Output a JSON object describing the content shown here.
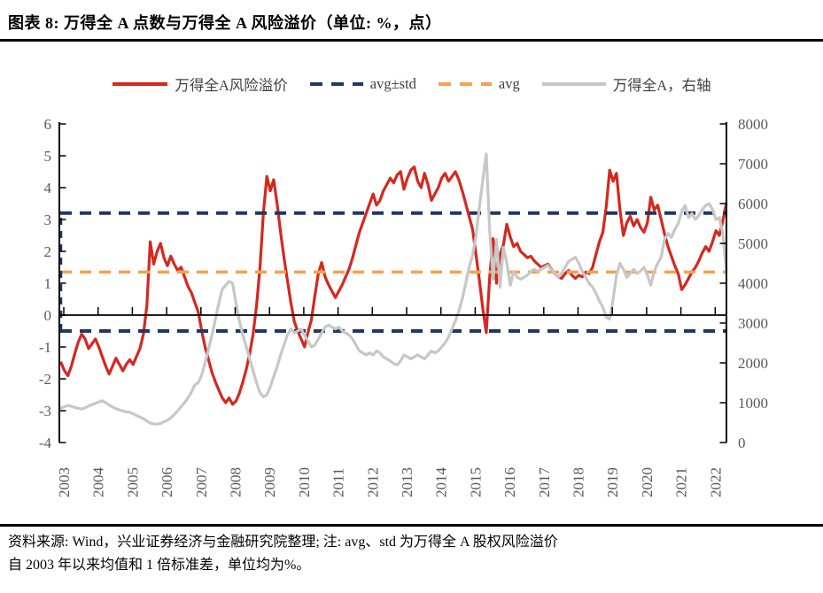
{
  "title": "图表 8: 万得全 A 点数与万得全 A 风险溢价（单位: %，点）",
  "legend": {
    "items": [
      {
        "label": "万得全A风险溢价",
        "marker": "solid",
        "color": "#d5281e",
        "length": 64
      },
      {
        "label": "avg±std",
        "marker": "dashed",
        "color": "#1f3864",
        "length": 62
      },
      {
        "label": "avg",
        "marker": "dashed",
        "color": "#f7a14e",
        "length": 62
      },
      {
        "label": "万得全A，右轴",
        "marker": "solid",
        "color": "#c7c7c7",
        "length": 74
      }
    ]
  },
  "footer": {
    "line1": "资料来源: Wind，兴业证券经济与金融研究院整理; 注: avg、std 为万得全 A 股权风险溢价",
    "line2": "自 2003 年以来均值和 1 倍标准差，单位均为%。"
  },
  "colors": {
    "risk_premium": "#d5281e",
    "avg_std_band": "#1f3864",
    "avg": "#f7a14e",
    "index": "#c7c7c7",
    "axis_line": "#000000",
    "axis_text": "#595959"
  },
  "chart_data": {
    "type": "line",
    "title": "万得全 A 点数与万得全 A 风险溢价",
    "x_start": 2003.0,
    "x_step": 0.1,
    "x_ticks": [
      "2003",
      "2004",
      "2005",
      "2006",
      "2007",
      "2008",
      "2009",
      "2010",
      "2011",
      "2012",
      "2013",
      "2014",
      "2015",
      "2016",
      "2017",
      "2018",
      "2019",
      "2020",
      "2021",
      "2022"
    ],
    "left_axis": {
      "min": -4,
      "max": 6,
      "ticks": [
        "6",
        "5",
        "4",
        "3",
        "2",
        "1",
        "0",
        "-1",
        "-2",
        "-3",
        "-4"
      ]
    },
    "right_axis": {
      "min": 0,
      "max": 8000,
      "ticks": [
        "8000",
        "7000",
        "6000",
        "5000",
        "4000",
        "3000",
        "2000",
        "1000",
        "0"
      ]
    },
    "grid": false,
    "legend_position": "top",
    "hlines": [
      {
        "name": "avg+std",
        "value": 3.2,
        "color": "#1f3864",
        "width": 4
      },
      {
        "name": "avg",
        "value": 1.35,
        "color": "#f7a14e",
        "width": 3.5
      },
      {
        "name": "avg-std",
        "value": -0.5,
        "color": "#1f3864",
        "width": 4
      }
    ],
    "start_connector": {
      "x_year": 2003.0,
      "from": -0.5,
      "to": 3.2,
      "color": "#1f3864",
      "width": 3.5
    },
    "series": [
      {
        "name": "万得全A风险溢价",
        "axis": "left",
        "color": "#d5281e",
        "width": 3.2,
        "z": 1,
        "values": [
          -1.5,
          -1.75,
          -1.9,
          -1.6,
          -1.2,
          -0.85,
          -0.6,
          -0.75,
          -1.05,
          -0.9,
          -0.75,
          -1.0,
          -1.3,
          -1.6,
          -1.85,
          -1.6,
          -1.35,
          -1.55,
          -1.75,
          -1.55,
          -1.4,
          -1.55,
          -1.3,
          -1.05,
          -0.6,
          0.3,
          2.3,
          1.6,
          2.0,
          2.25,
          1.8,
          1.55,
          1.85,
          1.6,
          1.4,
          1.5,
          1.2,
          0.9,
          0.7,
          0.4,
          0.1,
          -0.5,
          -1.0,
          -1.4,
          -1.8,
          -2.1,
          -2.35,
          -2.6,
          -2.75,
          -2.6,
          -2.8,
          -2.7,
          -2.45,
          -2.1,
          -1.7,
          -1.2,
          -0.6,
          0.3,
          1.5,
          3.2,
          4.35,
          3.9,
          4.25,
          3.5,
          2.6,
          1.8,
          1.1,
          0.4,
          -0.2,
          -0.5,
          -0.75,
          -1.0,
          -0.55,
          -0.15,
          0.6,
          1.3,
          1.65,
          1.2,
          0.95,
          0.75,
          0.55,
          0.75,
          0.95,
          1.2,
          1.45,
          1.8,
          2.2,
          2.6,
          2.9,
          3.2,
          3.5,
          3.8,
          3.45,
          3.6,
          3.9,
          4.1,
          4.3,
          4.15,
          4.4,
          4.5,
          3.95,
          4.3,
          4.55,
          4.65,
          4.2,
          4.0,
          4.45,
          4.1,
          3.6,
          3.8,
          4.0,
          4.3,
          4.45,
          4.2,
          4.35,
          4.5,
          4.25,
          3.9,
          3.5,
          3.1,
          2.7,
          1.9,
          1.1,
          0.2,
          -0.55,
          1.2,
          2.4,
          1.0,
          1.9,
          2.2,
          2.85,
          2.45,
          2.15,
          2.25,
          2.0,
          1.9,
          1.8,
          1.85,
          1.7,
          1.6,
          1.5,
          1.55,
          1.6,
          1.45,
          1.3,
          1.2,
          1.15,
          1.3,
          1.4,
          1.25,
          1.15,
          1.25,
          1.2,
          1.35,
          1.3,
          1.5,
          1.9,
          2.3,
          2.6,
          3.4,
          4.55,
          4.2,
          4.45,
          3.3,
          2.5,
          2.9,
          3.1,
          2.8,
          3.0,
          2.75,
          2.6,
          2.9,
          3.7,
          3.3,
          3.45,
          3.0,
          2.55,
          2.15,
          1.85,
          1.55,
          1.3,
          0.8,
          0.95,
          1.15,
          1.35,
          1.5,
          1.7,
          1.95,
          2.15,
          2.0,
          2.3,
          2.65,
          2.5,
          2.95,
          3.5
        ]
      },
      {
        "name": "万得全A，右轴",
        "axis": "right",
        "color": "#c7c7c7",
        "width": 3.2,
        "z": 2,
        "values": [
          870,
          900,
          930,
          910,
          880,
          860,
          840,
          870,
          920,
          950,
          980,
          1020,
          1050,
          1000,
          940,
          890,
          850,
          820,
          790,
          770,
          760,
          720,
          680,
          640,
          600,
          540,
          490,
          470,
          460,
          480,
          520,
          560,
          620,
          700,
          800,
          900,
          1000,
          1120,
          1270,
          1450,
          1500,
          1700,
          2000,
          2350,
          2700,
          3100,
          3500,
          3850,
          3950,
          4050,
          4000,
          3500,
          3050,
          2700,
          2400,
          2100,
          1800,
          1500,
          1250,
          1150,
          1200,
          1400,
          1650,
          1900,
          2200,
          2450,
          2700,
          2850,
          2750,
          2800,
          2850,
          2700,
          2550,
          2400,
          2450,
          2600,
          2750,
          2900,
          2950,
          2900,
          2850,
          2900,
          2800,
          2750,
          2700,
          2600,
          2450,
          2300,
          2250,
          2200,
          2250,
          2200,
          2300,
          2250,
          2150,
          2100,
          2050,
          1980,
          1950,
          2050,
          2200,
          2150,
          2100,
          2150,
          2200,
          2150,
          2100,
          2200,
          2300,
          2250,
          2300,
          2400,
          2500,
          2650,
          2850,
          3050,
          3300,
          3600,
          4000,
          4400,
          4700,
          5200,
          5900,
          6600,
          7250,
          5300,
          4100,
          5100,
          3900,
          4900,
          4500,
          3950,
          4300,
          4150,
          4100,
          4150,
          4200,
          4300,
          4350,
          4300,
          4350,
          4400,
          4450,
          4350,
          4250,
          4150,
          4250,
          4400,
          4550,
          4600,
          4650,
          4500,
          4300,
          4150,
          4000,
          3900,
          3750,
          3550,
          3400,
          3150,
          3100,
          3600,
          4200,
          4500,
          4350,
          4150,
          4250,
          4350,
          4250,
          4300,
          4400,
          4200,
          3950,
          4300,
          4500,
          4650,
          5100,
          5250,
          5150,
          5350,
          5500,
          5800,
          5950,
          5650,
          5750,
          5600,
          5700,
          5850,
          5950,
          6000,
          5850,
          5600,
          5650,
          5250,
          4350
        ]
      }
    ]
  }
}
